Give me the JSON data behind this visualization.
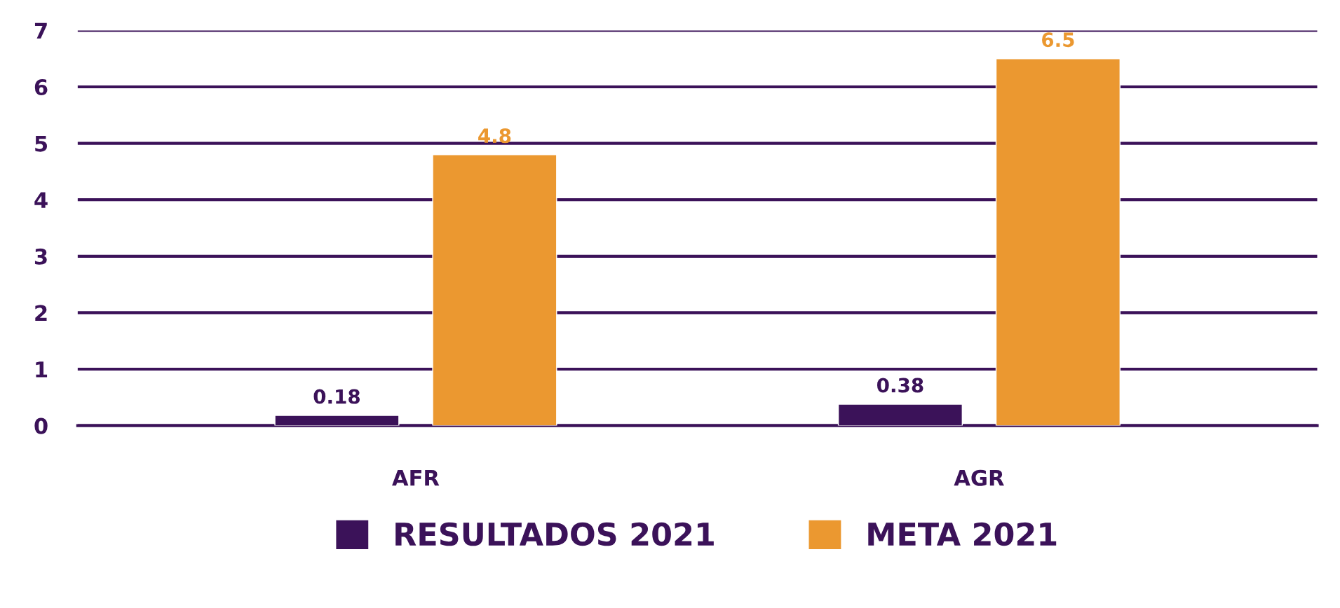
{
  "chart_data": {
    "type": "bar",
    "categories": [
      "AFR",
      "AGR"
    ],
    "series": [
      {
        "name": "RESULTADOS 2021",
        "color": "#3b1259",
        "values": [
          0.18,
          0.38
        ]
      },
      {
        "name": "META 2021",
        "color": "#eb9830",
        "values": [
          4.8,
          6.5
        ]
      }
    ],
    "ylim": [
      0,
      7
    ],
    "yticks": [
      0,
      1,
      2,
      3,
      4,
      5,
      6,
      7
    ],
    "grid": "y",
    "legend": "bottom",
    "data_labels": true
  }
}
